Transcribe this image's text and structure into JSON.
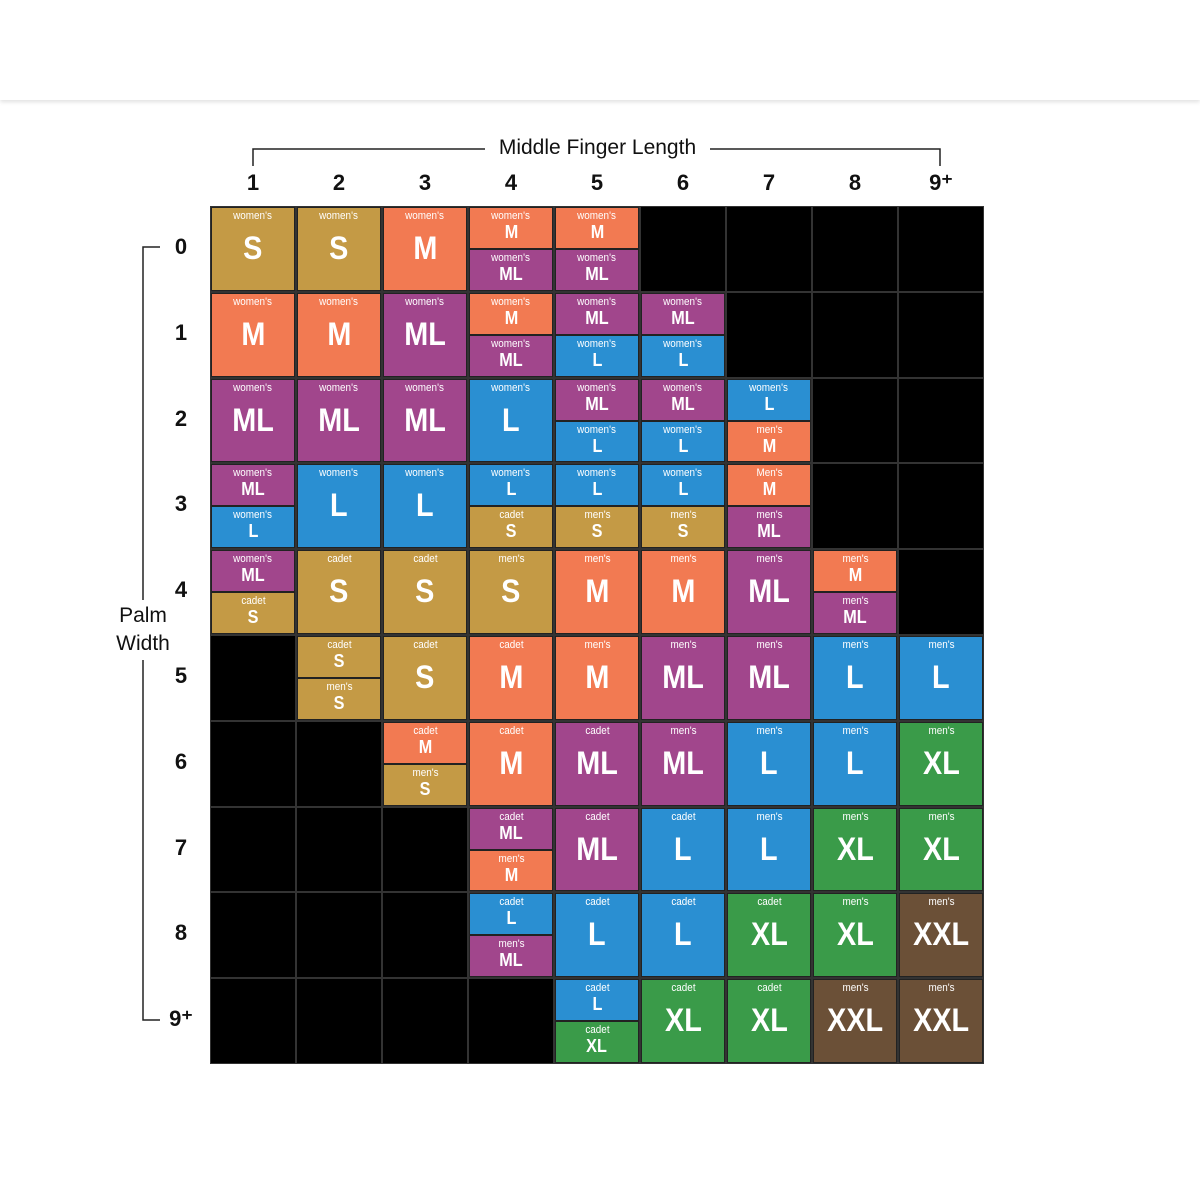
{
  "header": {
    "x_title": "Middle Finger Length",
    "y_title": "Palm Width"
  },
  "columns": [
    "1",
    "2",
    "3",
    "4",
    "5",
    "6",
    "7",
    "8",
    "9⁺"
  ],
  "rows": [
    {
      "label": "0",
      "cells": [
        [
          {
            "type": "women's",
            "size": "S",
            "color": "#c49a45"
          }
        ],
        [
          {
            "type": "women's",
            "size": "S",
            "color": "#c49a45"
          }
        ],
        [
          {
            "type": "women's",
            "size": "M",
            "color": "#f27a52"
          }
        ],
        [
          {
            "type": "women's",
            "size": "M",
            "color": "#f27a52"
          },
          {
            "type": "women's",
            "size": "ML",
            "color": "#a1468c"
          }
        ],
        [
          {
            "type": "women's",
            "size": "M",
            "color": "#f27a52"
          },
          {
            "type": "women's",
            "size": "ML",
            "color": "#a1468c"
          }
        ],
        [],
        [],
        [],
        []
      ]
    },
    {
      "label": "1",
      "cells": [
        [
          {
            "type": "women's",
            "size": "M",
            "color": "#f27a52"
          }
        ],
        [
          {
            "type": "women's",
            "size": "M",
            "color": "#f27a52"
          }
        ],
        [
          {
            "type": "women's",
            "size": "ML",
            "color": "#a1468c"
          }
        ],
        [
          {
            "type": "women's",
            "size": "M",
            "color": "#f27a52"
          },
          {
            "type": "women's",
            "size": "ML",
            "color": "#a1468c"
          }
        ],
        [
          {
            "type": "women's",
            "size": "ML",
            "color": "#a1468c"
          },
          {
            "type": "women's",
            "size": "L",
            "color": "#2a8fd2"
          }
        ],
        [
          {
            "type": "women's",
            "size": "ML",
            "color": "#a1468c"
          },
          {
            "type": "women's",
            "size": "L",
            "color": "#2a8fd2"
          }
        ],
        [],
        [],
        []
      ]
    },
    {
      "label": "2",
      "cells": [
        [
          {
            "type": "women's",
            "size": "ML",
            "color": "#a1468c"
          }
        ],
        [
          {
            "type": "women's",
            "size": "ML",
            "color": "#a1468c"
          }
        ],
        [
          {
            "type": "women's",
            "size": "ML",
            "color": "#a1468c"
          }
        ],
        [
          {
            "type": "women's",
            "size": "L",
            "color": "#2a8fd2"
          }
        ],
        [
          {
            "type": "women's",
            "size": "ML",
            "color": "#a1468c"
          },
          {
            "type": "women's",
            "size": "L",
            "color": "#2a8fd2"
          }
        ],
        [
          {
            "type": "women's",
            "size": "ML",
            "color": "#a1468c"
          },
          {
            "type": "women's",
            "size": "L",
            "color": "#2a8fd2"
          }
        ],
        [
          {
            "type": "women's",
            "size": "L",
            "color": "#2a8fd2"
          },
          {
            "type": "men's",
            "size": "M",
            "color": "#f27a52"
          }
        ],
        [],
        []
      ]
    },
    {
      "label": "3",
      "cells": [
        [
          {
            "type": "women's",
            "size": "ML",
            "color": "#a1468c"
          },
          {
            "type": "women's",
            "size": "L",
            "color": "#2a8fd2"
          }
        ],
        [
          {
            "type": "women's",
            "size": "L",
            "color": "#2a8fd2"
          }
        ],
        [
          {
            "type": "women's",
            "size": "L",
            "color": "#2a8fd2"
          }
        ],
        [
          {
            "type": "women's",
            "size": "L",
            "color": "#2a8fd2"
          },
          {
            "type": "cadet",
            "size": "S",
            "color": "#c49a45"
          }
        ],
        [
          {
            "type": "women's",
            "size": "L",
            "color": "#2a8fd2"
          },
          {
            "type": "men's",
            "size": "S",
            "color": "#c49a45"
          }
        ],
        [
          {
            "type": "women's",
            "size": "L",
            "color": "#2a8fd2"
          },
          {
            "type": "men's",
            "size": "S",
            "color": "#c49a45"
          }
        ],
        [
          {
            "type": "Men's",
            "size": "M",
            "color": "#f27a52"
          },
          {
            "type": "men's",
            "size": "ML",
            "color": "#a1468c"
          }
        ],
        [],
        []
      ]
    },
    {
      "label": "4",
      "cells": [
        [
          {
            "type": "women's",
            "size": "ML",
            "color": "#a1468c"
          },
          {
            "type": "cadet",
            "size": "S",
            "color": "#c49a45"
          }
        ],
        [
          {
            "type": "cadet",
            "size": "S",
            "color": "#c49a45"
          }
        ],
        [
          {
            "type": "cadet",
            "size": "S",
            "color": "#c49a45"
          }
        ],
        [
          {
            "type": "men's",
            "size": "S",
            "color": "#c49a45"
          }
        ],
        [
          {
            "type": "men's",
            "size": "M",
            "color": "#f27a52"
          }
        ],
        [
          {
            "type": "men's",
            "size": "M",
            "color": "#f27a52"
          }
        ],
        [
          {
            "type": "men's",
            "size": "ML",
            "color": "#a1468c"
          }
        ],
        [
          {
            "type": "men's",
            "size": "M",
            "color": "#f27a52"
          },
          {
            "type": "men's",
            "size": "ML",
            "color": "#a1468c"
          }
        ],
        []
      ]
    },
    {
      "label": "5",
      "cells": [
        [],
        [
          {
            "type": "cadet",
            "size": "S",
            "color": "#c49a45"
          },
          {
            "type": "men's",
            "size": "S",
            "color": "#c49a45"
          }
        ],
        [
          {
            "type": "cadet",
            "size": "S",
            "color": "#c49a45"
          }
        ],
        [
          {
            "type": "cadet",
            "size": "M",
            "color": "#f27a52"
          }
        ],
        [
          {
            "type": "men's",
            "size": "M",
            "color": "#f27a52"
          }
        ],
        [
          {
            "type": "men's",
            "size": "ML",
            "color": "#a1468c"
          }
        ],
        [
          {
            "type": "men's",
            "size": "ML",
            "color": "#a1468c"
          }
        ],
        [
          {
            "type": "men's",
            "size": "L",
            "color": "#2a8fd2"
          }
        ],
        [
          {
            "type": "men's",
            "size": "L",
            "color": "#2a8fd2"
          }
        ]
      ]
    },
    {
      "label": "6",
      "cells": [
        [],
        [],
        [
          {
            "type": "cadet",
            "size": "M",
            "color": "#f27a52"
          },
          {
            "type": "men's",
            "size": "S",
            "color": "#c49a45"
          }
        ],
        [
          {
            "type": "cadet",
            "size": "M",
            "color": "#f27a52"
          }
        ],
        [
          {
            "type": "cadet",
            "size": "ML",
            "color": "#a1468c"
          }
        ],
        [
          {
            "type": "men's",
            "size": "ML",
            "color": "#a1468c"
          }
        ],
        [
          {
            "type": "men's",
            "size": "L",
            "color": "#2a8fd2"
          }
        ],
        [
          {
            "type": "men's",
            "size": "L",
            "color": "#2a8fd2"
          }
        ],
        [
          {
            "type": "men's",
            "size": "XL",
            "color": "#3a9b49"
          }
        ]
      ]
    },
    {
      "label": "7",
      "cells": [
        [],
        [],
        [],
        [
          {
            "type": "cadet",
            "size": "ML",
            "color": "#a1468c"
          },
          {
            "type": "men's",
            "size": "M",
            "color": "#f27a52"
          }
        ],
        [
          {
            "type": "cadet",
            "size": "ML",
            "color": "#a1468c"
          }
        ],
        [
          {
            "type": "cadet",
            "size": "L",
            "color": "#2a8fd2"
          }
        ],
        [
          {
            "type": "men's",
            "size": "L",
            "color": "#2a8fd2"
          }
        ],
        [
          {
            "type": "men's",
            "size": "XL",
            "color": "#3a9b49"
          }
        ],
        [
          {
            "type": "men's",
            "size": "XL",
            "color": "#3a9b49"
          }
        ]
      ]
    },
    {
      "label": "8",
      "cells": [
        [],
        [],
        [],
        [
          {
            "type": "cadet",
            "size": "L",
            "color": "#2a8fd2"
          },
          {
            "type": "men's",
            "size": "ML",
            "color": "#a1468c"
          }
        ],
        [
          {
            "type": "cadet",
            "size": "L",
            "color": "#2a8fd2"
          }
        ],
        [
          {
            "type": "cadet",
            "size": "L",
            "color": "#2a8fd2"
          }
        ],
        [
          {
            "type": "cadet",
            "size": "XL",
            "color": "#3a9b49"
          }
        ],
        [
          {
            "type": "men's",
            "size": "XL",
            "color": "#3a9b49"
          }
        ],
        [
          {
            "type": "men's",
            "size": "XXL",
            "color": "#6b5037"
          }
        ]
      ]
    },
    {
      "label": "9⁺",
      "cells": [
        [],
        [],
        [],
        [],
        [
          {
            "type": "cadet",
            "size": "L",
            "color": "#2a8fd2"
          },
          {
            "type": "cadet",
            "size": "XL",
            "color": "#3a9b49"
          }
        ],
        [
          {
            "type": "cadet",
            "size": "XL",
            "color": "#3a9b49"
          }
        ],
        [
          {
            "type": "cadet",
            "size": "XL",
            "color": "#3a9b49"
          }
        ],
        [
          {
            "type": "men's",
            "size": "XXL",
            "color": "#6b5037"
          }
        ],
        [
          {
            "type": "men's",
            "size": "XXL",
            "color": "#6b5037"
          }
        ]
      ]
    }
  ]
}
